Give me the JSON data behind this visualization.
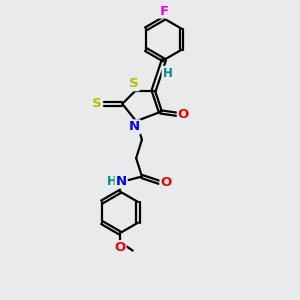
{
  "bg_color": "#e8eaec",
  "line_color": "#000000",
  "bond_width": 1.6,
  "atom_colors": {
    "F": "#ee00ee",
    "S": "#bbbb00",
    "N": "#0000ee",
    "O": "#ee0000",
    "H": "#008888"
  },
  "font_size": 8.5,
  "xlim": [
    0,
    10
  ],
  "ylim": [
    0,
    13
  ]
}
